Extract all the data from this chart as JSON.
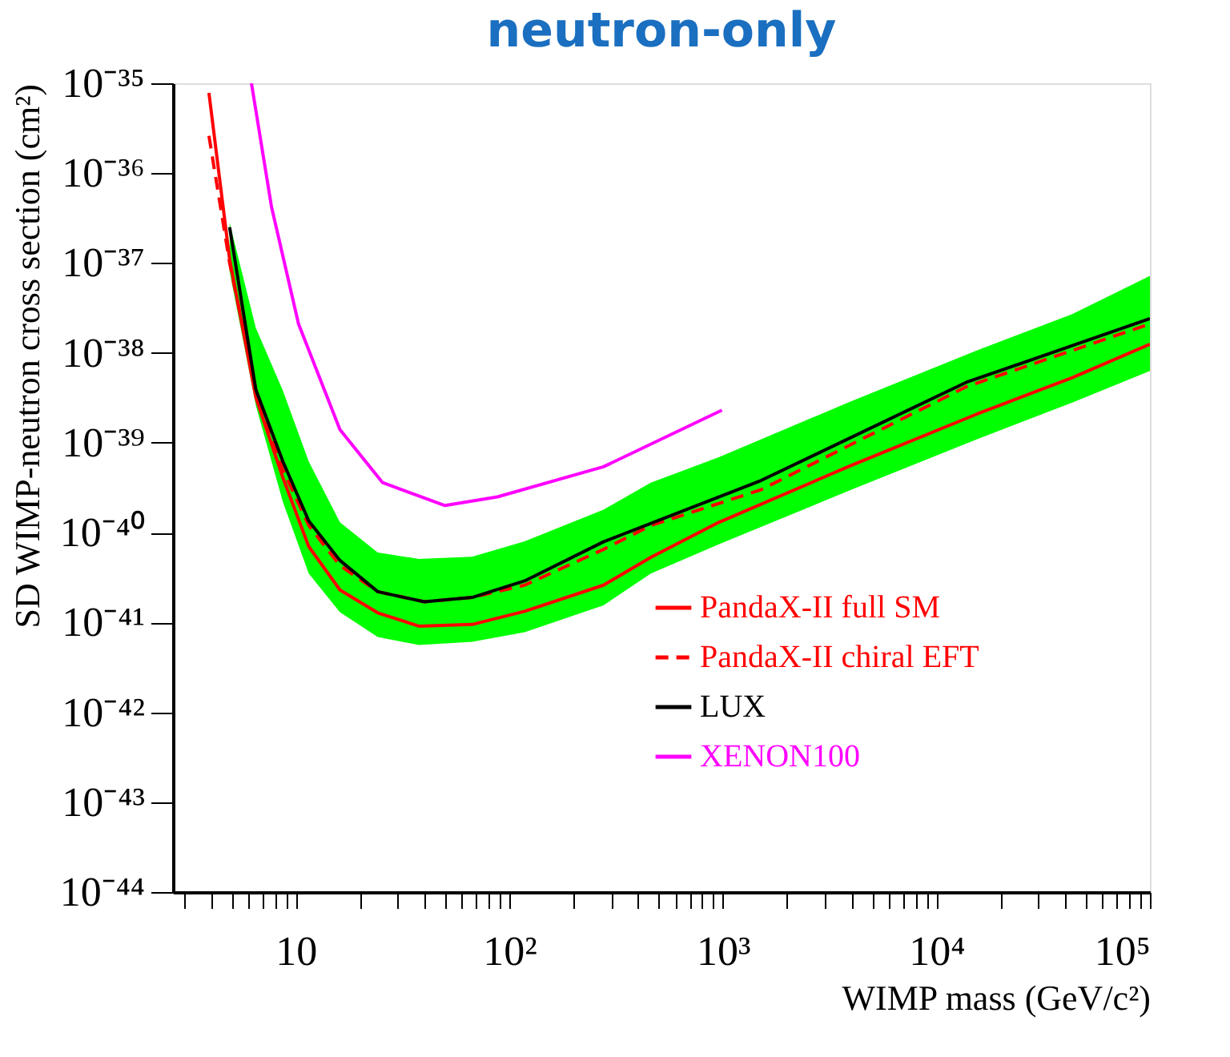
{
  "chart_data": {
    "type": "line",
    "title": "neutron-only",
    "xlabel": "WIMP mass (GeV/c²)",
    "ylabel": "SD WIMP-neutron cross section (cm²)",
    "log": "xy",
    "grid": false,
    "legend": "right",
    "marker": "none",
    "xlim": [
      2.66,
      100000
    ],
    "ylim": [
      1e-44,
      1e-35
    ],
    "xticks": [
      {
        "value": 3,
        "label": null
      },
      {
        "value": 4,
        "label": null
      },
      {
        "value": 5,
        "label": null
      },
      {
        "value": 6,
        "label": null
      },
      {
        "value": 7,
        "label": null
      },
      {
        "value": 8,
        "label": null
      },
      {
        "value": 9,
        "label": null
      },
      10,
      {
        "value": 20,
        "label": null
      },
      {
        "value": 30,
        "label": null
      },
      {
        "value": 40,
        "label": null
      },
      {
        "value": 50,
        "label": null
      },
      {
        "value": 60,
        "label": null
      },
      {
        "value": 70,
        "label": null
      },
      {
        "value": 80,
        "label": null
      },
      {
        "value": 90,
        "label": null
      },
      {
        "value": 100,
        "label": "10²"
      },
      {
        "value": 200,
        "label": null
      },
      {
        "value": 300,
        "label": null
      },
      {
        "value": 400,
        "label": null
      },
      {
        "value": 500,
        "label": null
      },
      {
        "value": 600,
        "label": null
      },
      {
        "value": 700,
        "label": null
      },
      {
        "value": 800,
        "label": null
      },
      {
        "value": 900,
        "label": null
      },
      {
        "value": 1000,
        "label": "10³"
      },
      {
        "value": 2000,
        "label": null
      },
      {
        "value": 3000,
        "label": null
      },
      {
        "value": 4000,
        "label": null
      },
      {
        "value": 5000,
        "label": null
      },
      {
        "value": 6000,
        "label": null
      },
      {
        "value": 7000,
        "label": null
      },
      {
        "value": 8000,
        "label": null
      },
      {
        "value": 9000,
        "label": null
      },
      {
        "value": 10000,
        "label": "10⁴"
      },
      {
        "value": 20000,
        "label": null
      },
      {
        "value": 30000,
        "label": null
      },
      {
        "value": 40000,
        "label": null
      },
      {
        "value": 50000,
        "label": null
      },
      {
        "value": 60000,
        "label": null
      },
      {
        "value": 70000,
        "label": null
      },
      {
        "value": 80000,
        "label": null
      },
      {
        "value": 90000,
        "label": null
      },
      {
        "value": 100000,
        "label": "10⁵"
      }
    ],
    "yticks": [
      {
        "value": 1e-44,
        "label": "10⁻⁴⁴"
      },
      {
        "value": 1e-43,
        "label": "10⁻⁴³"
      },
      {
        "value": 1e-42,
        "label": "10⁻⁴²"
      },
      {
        "value": 1e-41,
        "label": "10⁻⁴¹"
      },
      {
        "value": 1e-40,
        "label": "10⁻⁴⁰"
      },
      {
        "value": 1e-39,
        "label": "10⁻³⁹"
      },
      {
        "value": 1e-38,
        "label": "10⁻³⁸"
      },
      {
        "value": 1e-37,
        "label": "10⁻³⁷"
      },
      {
        "value": 1e-36,
        "label": "10⁻³⁶"
      },
      {
        "value": 1e-35,
        "label": "10⁻³⁵"
      }
    ],
    "series": [
      {
        "name": "PandaX-II full SM",
        "color": "#ff0000",
        "line_style": "solid",
        "x": [
          3.92,
          4.9,
          6.5,
          8.7,
          11.5,
          16.1,
          24.2,
          37.7,
          67,
          118,
          276,
          460,
          957,
          4000,
          15600,
          43300,
          100000
        ],
        "values": [
          7.8e-36,
          1.1e-37,
          3.2e-39,
          4.1e-40,
          7e-41,
          2.3e-41,
          1.28e-41,
          9.1e-42,
          9.5e-42,
          1.33e-41,
          2.6e-41,
          5.3e-41,
          1.3e-40,
          5.6e-40,
          2.1e-39,
          5.3e-39,
          1.25e-38
        ],
        "lower": [
          null,
          8e-38,
          2.6e-39,
          2.2e-40,
          3.5e-41,
          1.3e-41,
          6.9e-42,
          5.6e-42,
          6.1e-42,
          7.8e-42,
          1.55e-41,
          3.5e-41,
          7.4e-41,
          3e-40,
          1.1e-39,
          2.8e-39,
          6.3e-39
        ],
        "upper": [
          null,
          2.8e-37,
          1.9e-38,
          3.8e-39,
          6.2e-40,
          1.3e-40,
          6e-41,
          5.1e-41,
          5.4e-41,
          8e-41,
          1.8e-40,
          3.6e-40,
          6.9e-40,
          2.9e-39,
          1.07e-38,
          2.7e-38,
          7.2e-38
        ]
      },
      {
        "name": "PandaX-II chiral EFT",
        "color": "#ff0000",
        "line_style": "dashed",
        "x": [
          3.92,
          4.9,
          6.5,
          8.7,
          11.5,
          16.1,
          24.2,
          40,
          67,
          118,
          276,
          460,
          1510,
          13800,
          100000
        ],
        "values": [
          2.6e-36,
          1e-37,
          3.9e-39,
          5e-40,
          1.2e-40,
          4.3e-41,
          2.2e-41,
          1.7e-41,
          1.9e-41,
          2.6e-41,
          6.5e-41,
          1.2e-40,
          3e-40,
          4.2e-39,
          2.1e-38
        ]
      },
      {
        "name": "LUX",
        "color": "#000000",
        "line_style": "solid",
        "x": [
          4.9,
          6.5,
          8.7,
          11.5,
          16.1,
          24.2,
          40,
          67,
          118,
          276,
          1510,
          13800,
          100000
        ],
        "values": [
          2.5e-37,
          3.9e-39,
          6.2e-40,
          1.35e-40,
          4.9e-41,
          2.2e-41,
          1.7e-41,
          1.9e-41,
          2.9e-41,
          7.9e-41,
          3.8e-40,
          4.7e-39,
          2.4e-38
        ]
      },
      {
        "name": "XENON100",
        "color": "#ff00ff",
        "line_style": "solid",
        "x": [
          6.2,
          7.7,
          10.3,
          16.1,
          25.5,
          50,
          88,
          276,
          990
        ],
        "values": [
          1e-35,
          4.2e-37,
          2.1e-38,
          1.4e-39,
          3.6e-40,
          2e-40,
          2.5e-40,
          5.4e-40,
          2.3e-39
        ]
      }
    ]
  }
}
